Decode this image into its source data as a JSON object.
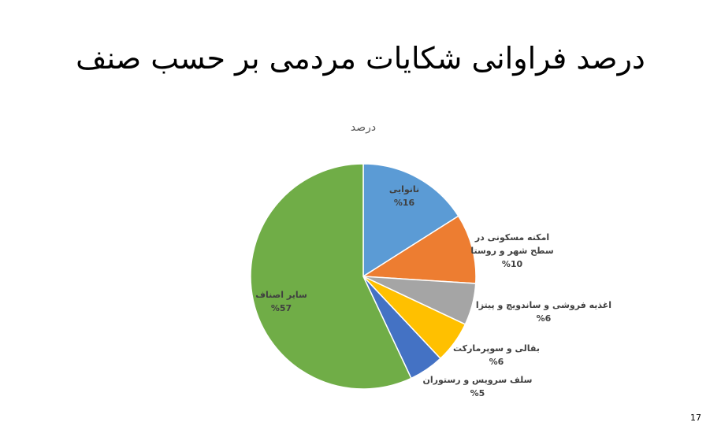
{
  "slide": {
    "title": "درصد فراوانی شکایات مردمی بر حسب صنف",
    "page_number": "17"
  },
  "chart_data": {
    "type": "pie",
    "title": "درصد",
    "categories": [
      "نانوایی",
      "امکنه مسکونی در سطح شهر و روستا",
      "اغذیه فروشی و ساندویچ و پیتزا",
      "بقالی و سوپرمارکت",
      "سلف سرویس و رستوران",
      "سایر اصناف"
    ],
    "label_lines": [
      [
        "نانوایی"
      ],
      [
        "امکنه مسکونی در",
        "سطح شهر و روستا"
      ],
      [
        "اغذیه فروشی و ساندویچ و پیتزا"
      ],
      [
        "بقالی و سوپرمارکت"
      ],
      [
        "سلف سرویس و رستوران"
      ],
      [
        "سایر اصناف"
      ]
    ],
    "values": [
      16,
      10,
      6,
      6,
      5,
      57
    ],
    "value_labels": [
      "%16",
      "%10",
      "%6",
      "%6",
      "%5",
      "%57"
    ],
    "colors": [
      "#5B9BD5",
      "#ED7D31",
      "#A5A5A5",
      "#FFC000",
      "#4472C4",
      "#70AD47"
    ]
  }
}
